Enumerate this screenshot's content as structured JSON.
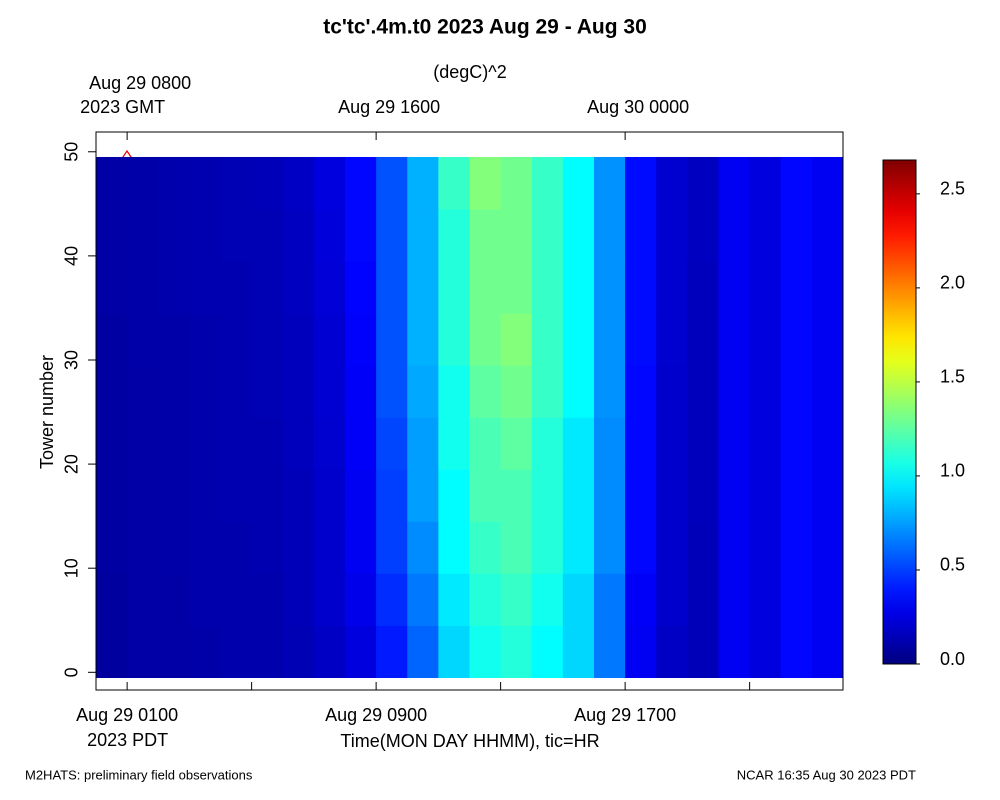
{
  "chart_data": {
    "type": "heatmap",
    "title": "tc'tc'.4m.t0 2023 Aug 29 - Aug 30",
    "units": "(degC)^2",
    "ylabel": "Tower number",
    "xlabel": "Time(MON DAY HHMM), tic=HR",
    "footer_left": "M2HATS: preliminary field observations",
    "footer_right": "NCAR 16:35 Aug 30 2023 PDT",
    "xlim": [
      0,
      24
    ],
    "ylim": [
      -1.7,
      51.9
    ],
    "xticks": [
      {
        "value": 1,
        "label": [
          "Aug 29 0100",
          "2023 PDT"
        ]
      },
      {
        "value": 5,
        "label": null
      },
      {
        "value": 9,
        "label": [
          "Aug 29 0900"
        ]
      },
      {
        "value": 13,
        "label": null
      },
      {
        "value": 17,
        "label": [
          "Aug 29 1700"
        ]
      },
      {
        "value": 21,
        "label": null
      }
    ],
    "top_xticks": [
      {
        "value": 1,
        "label": [
          "Aug 29 0800",
          "2023 GMT"
        ]
      },
      {
        "value": 9,
        "label": [
          "Aug 29 1600"
        ]
      },
      {
        "value": 17,
        "label": [
          "Aug 30 0000"
        ]
      }
    ],
    "yticks": [
      0,
      10,
      20,
      30,
      40,
      50
    ],
    "xbins": [
      0,
      1,
      2,
      3,
      4,
      5,
      6,
      7,
      8,
      9,
      10,
      11,
      12,
      13,
      14,
      15,
      16,
      17,
      18,
      19,
      20,
      21,
      22,
      23,
      24
    ],
    "ybins": [
      -0.5,
      4.5,
      9.5,
      14.5,
      19.5,
      24.5,
      29.5,
      34.5,
      39.5,
      44.5,
      49.5
    ],
    "z": [
      [
        0.08,
        0.1,
        0.1,
        0.11,
        0.12,
        0.12,
        0.14,
        0.18,
        0.25,
        0.4,
        0.6,
        0.9,
        1.05,
        1.1,
        1.0,
        0.9,
        0.65,
        0.3,
        0.18,
        0.15,
        0.3,
        0.25,
        0.35,
        0.3
      ],
      [
        0.08,
        0.1,
        0.1,
        0.12,
        0.12,
        0.12,
        0.15,
        0.2,
        0.28,
        0.45,
        0.65,
        0.95,
        1.1,
        1.15,
        1.05,
        0.9,
        0.65,
        0.32,
        0.2,
        0.15,
        0.3,
        0.25,
        0.35,
        0.3
      ],
      [
        0.09,
        0.1,
        0.11,
        0.12,
        0.12,
        0.13,
        0.15,
        0.2,
        0.3,
        0.5,
        0.7,
        1.0,
        1.15,
        1.2,
        1.1,
        0.95,
        0.7,
        0.35,
        0.2,
        0.15,
        0.3,
        0.25,
        0.35,
        0.3
      ],
      [
        0.09,
        0.1,
        0.11,
        0.12,
        0.13,
        0.13,
        0.15,
        0.2,
        0.3,
        0.5,
        0.75,
        1.0,
        1.2,
        1.2,
        1.1,
        0.95,
        0.7,
        0.35,
        0.2,
        0.16,
        0.3,
        0.25,
        0.35,
        0.3
      ],
      [
        0.09,
        0.1,
        0.11,
        0.12,
        0.13,
        0.13,
        0.16,
        0.21,
        0.32,
        0.52,
        0.75,
        1.05,
        1.2,
        1.25,
        1.1,
        0.95,
        0.7,
        0.35,
        0.2,
        0.16,
        0.3,
        0.25,
        0.35,
        0.3
      ],
      [
        0.09,
        0.1,
        0.11,
        0.12,
        0.13,
        0.14,
        0.16,
        0.22,
        0.32,
        0.55,
        0.78,
        1.05,
        1.25,
        1.3,
        1.15,
        1.0,
        0.72,
        0.35,
        0.2,
        0.16,
        0.3,
        0.25,
        0.35,
        0.3
      ],
      [
        0.09,
        0.11,
        0.11,
        0.12,
        0.13,
        0.14,
        0.16,
        0.22,
        0.33,
        0.55,
        0.8,
        1.1,
        1.3,
        1.35,
        1.15,
        1.0,
        0.72,
        0.36,
        0.21,
        0.16,
        0.3,
        0.25,
        0.35,
        0.3
      ],
      [
        0.1,
        0.11,
        0.12,
        0.13,
        0.13,
        0.14,
        0.17,
        0.23,
        0.34,
        0.55,
        0.8,
        1.1,
        1.3,
        1.3,
        1.15,
        1.0,
        0.72,
        0.36,
        0.21,
        0.16,
        0.3,
        0.25,
        0.35,
        0.3
      ],
      [
        0.1,
        0.11,
        0.12,
        0.13,
        0.14,
        0.14,
        0.17,
        0.24,
        0.35,
        0.55,
        0.8,
        1.1,
        1.3,
        1.3,
        1.15,
        1.0,
        0.72,
        0.36,
        0.21,
        0.17,
        0.3,
        0.25,
        0.35,
        0.3
      ],
      [
        0.1,
        0.11,
        0.12,
        0.13,
        0.14,
        0.15,
        0.18,
        0.25,
        0.35,
        0.55,
        0.8,
        1.15,
        1.35,
        1.3,
        1.15,
        1.0,
        0.72,
        0.36,
        0.21,
        0.17,
        0.3,
        0.25,
        0.35,
        0.3
      ]
    ],
    "clim": [
      0,
      2.68
    ],
    "colorbar_ticks": [
      {
        "value": 0,
        "label": "0.0"
      },
      {
        "value": 0.5,
        "label": "0.5"
      },
      {
        "value": 1,
        "label": "1.0"
      },
      {
        "value": 1.5,
        "label": "1.5"
      },
      {
        "value": 2,
        "label": "2.0"
      },
      {
        "value": 2.5,
        "label": "2.5"
      }
    ],
    "colormap": "jet"
  }
}
